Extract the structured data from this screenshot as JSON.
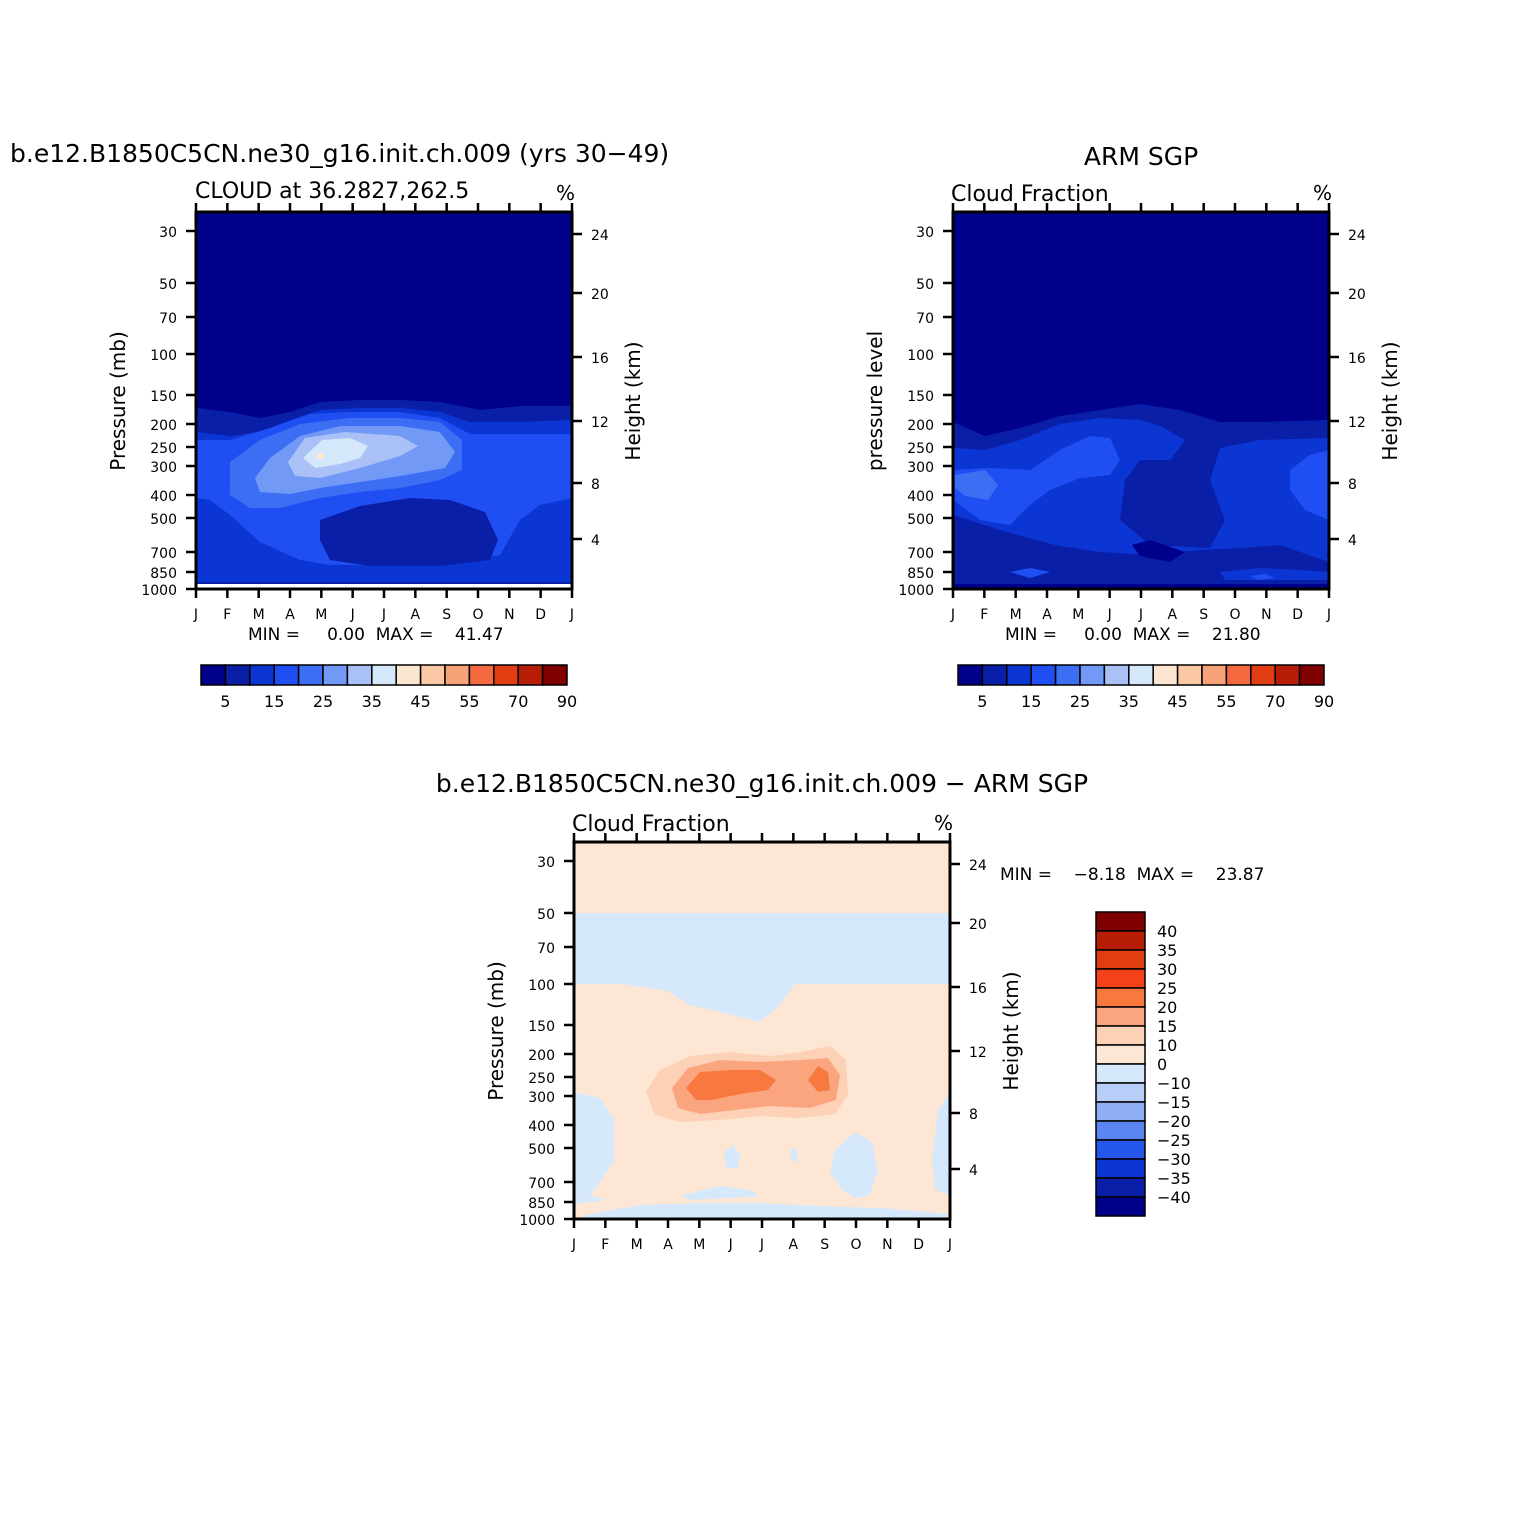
{
  "palettes": {
    "abs": [
      "#00008a",
      "#0a1fa8",
      "#0c36d4",
      "#1f4ff2",
      "#3c6ef4",
      "#7299f5",
      "#a9c1f7",
      "#d5e7fb",
      "#fde6d0",
      "#fbc8a6",
      "#f7a37a",
      "#f4693f",
      "#e13d12",
      "#b71d06",
      "#800000"
    ],
    "diff": [
      "#800000",
      "#b71d06",
      "#e13d12",
      "#f4401b",
      "#f7793f",
      "#fba57e",
      "#fcd1b5",
      "#fde7d4",
      "#d6e8fb",
      "#b7cff8",
      "#8faef6",
      "#5b86f2",
      "#2556ea",
      "#0c36d4",
      "#0a1fa8",
      "#00008a"
    ]
  },
  "chart_data": [
    {
      "id": "model",
      "type": "heatmap",
      "title": "b.e12.B1850C5CN.ne30_g16.init.ch.009 (yrs 30−49)",
      "subtitle": "CLOUD at 36.2827,262.5",
      "units": "%",
      "ylabel": "Pressure (mb)",
      "y2label": "Height (km)",
      "minmax": "MIN =     0.00  MAX =    41.47",
      "x_ticks": [
        "J",
        "F",
        "M",
        "A",
        "M",
        "J",
        "J",
        "A",
        "S",
        "O",
        "N",
        "D",
        "J"
      ],
      "y_ticks": [
        30,
        50,
        70,
        100,
        150,
        200,
        250,
        300,
        400,
        500,
        700,
        850,
        1000
      ],
      "y2_ticks": [
        24,
        20,
        16,
        12,
        8,
        4
      ],
      "color_bar": {
        "labels": [
          "5",
          "15",
          "25",
          "35",
          "45",
          "55",
          "70",
          "90"
        ]
      },
      "cloud_layer": {
        "top_mb": [
          175,
          180,
          190,
          205,
          180,
          165,
          165,
          165,
          170,
          180,
          180,
          180,
          180
        ],
        "base_mb": [
          1000,
          1000,
          1000,
          1000,
          1000,
          1000,
          1000,
          1000,
          1000,
          1000,
          1000,
          1000,
          1000
        ]
      },
      "peak": {
        "month": 4.2,
        "pressure_mb": 270,
        "value": 41.47
      }
    },
    {
      "id": "obs",
      "type": "heatmap",
      "title": "ARM SGP",
      "subtitle": "Cloud Fraction",
      "units": "%",
      "ylabel": "pressure level",
      "y2label": "Height (km)",
      "minmax": "MIN =     0.00  MAX =    21.80",
      "x_ticks": [
        "J",
        "F",
        "M",
        "A",
        "M",
        "J",
        "J",
        "A",
        "S",
        "O",
        "N",
        "D",
        "J"
      ],
      "y_ticks": [
        30,
        50,
        70,
        100,
        150,
        200,
        250,
        300,
        400,
        500,
        700,
        850,
        1000
      ],
      "y2_ticks": [
        24,
        20,
        16,
        12,
        8,
        4
      ],
      "color_bar": {
        "labels": [
          "5",
          "15",
          "25",
          "35",
          "45",
          "55",
          "70",
          "90"
        ]
      },
      "cloud_layer": {
        "top_mb": [
          190,
          210,
          200,
          185,
          175,
          170,
          165,
          170,
          200,
          200,
          195,
          190,
          190
        ],
        "base_mb": [
          1000,
          1000,
          1000,
          1000,
          1000,
          1000,
          1000,
          1000,
          1000,
          1000,
          1000,
          1000,
          1000
        ]
      },
      "peak": {
        "month": 5.2,
        "pressure_mb": 280,
        "value": 21.8
      }
    },
    {
      "id": "diff",
      "type": "heatmap",
      "title": "b.e12.B1850C5CN.ne30_g16.init.ch.009 − ARM SGP",
      "subtitle": "Cloud Fraction",
      "units": "%",
      "ylabel": "Pressure (mb)",
      "y2label": "Height (km)",
      "minmax": "MIN =    −8.18  MAX =    23.87",
      "x_ticks": [
        "J",
        "F",
        "M",
        "A",
        "M",
        "J",
        "J",
        "A",
        "S",
        "O",
        "N",
        "D",
        "J"
      ],
      "y_ticks": [
        30,
        50,
        70,
        100,
        150,
        200,
        250,
        300,
        400,
        500,
        700,
        850,
        1000
      ],
      "y2_ticks": [
        24,
        20,
        16,
        12,
        8,
        4
      ],
      "color_bar": {
        "labels": [
          "40",
          "35",
          "30",
          "25",
          "20",
          "15",
          "10",
          "0",
          "−10",
          "−15",
          "−20",
          "−25",
          "−30",
          "−35",
          "−40"
        ]
      },
      "neg_band_mb": [
        50,
        100
      ],
      "peak": {
        "month": 5.0,
        "pressure_mb": 260,
        "value": 23.87
      }
    }
  ]
}
